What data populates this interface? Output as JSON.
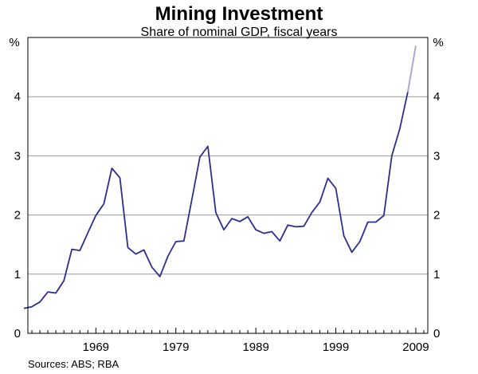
{
  "chart_data": {
    "type": "line",
    "title": "Mining Investment",
    "subtitle": "Share of nominal GDP, fiscal years",
    "ylabel_left": "%",
    "ylabel_right": "%",
    "ylim": [
      0,
      5
    ],
    "yticks": [
      0,
      1,
      2,
      3,
      4
    ],
    "xlim": [
      1960.5,
      2010.5
    ],
    "xticks": [
      1969,
      1979,
      1989,
      1999,
      2009
    ],
    "xtick_labels": [
      "1969",
      "1979",
      "1989",
      "1999",
      "2009"
    ],
    "grid": true,
    "series_color": "#2b2f8f",
    "forecast_color": "#a9a9d4",
    "source": "Sources: ABS; RBA",
    "series": [
      {
        "x": [
          1960,
          1961,
          1962,
          1963,
          1964,
          1965,
          1966,
          1967,
          1968,
          1969,
          1970,
          1971,
          1972,
          1973,
          1974,
          1975,
          1976,
          1977,
          1978,
          1979,
          1980,
          1981,
          1982,
          1983,
          1984,
          1985,
          1986,
          1987,
          1988,
          1989,
          1990,
          1991,
          1992,
          1993,
          1994,
          1995,
          1996,
          1997,
          1998,
          1999,
          2000,
          2001,
          2002,
          2003,
          2004,
          2005,
          2006,
          2007,
          2008
        ],
        "values": [
          0.42,
          0.45,
          0.53,
          0.7,
          0.68,
          0.89,
          1.42,
          1.4,
          1.7,
          1.99,
          2.19,
          2.79,
          2.63,
          1.45,
          1.34,
          1.41,
          1.12,
          0.96,
          1.3,
          1.55,
          1.56,
          2.26,
          2.98,
          3.16,
          2.04,
          1.75,
          1.94,
          1.89,
          1.97,
          1.75,
          1.69,
          1.72,
          1.56,
          1.83,
          1.8,
          1.81,
          2.04,
          2.22,
          2.62,
          2.45,
          1.65,
          1.37,
          1.55,
          1.88,
          1.88,
          1.99,
          3.0,
          3.46,
          4.08
        ]
      },
      {
        "x": [
          2008,
          2009
        ],
        "values": [
          4.08,
          4.86
        ]
      }
    ]
  }
}
